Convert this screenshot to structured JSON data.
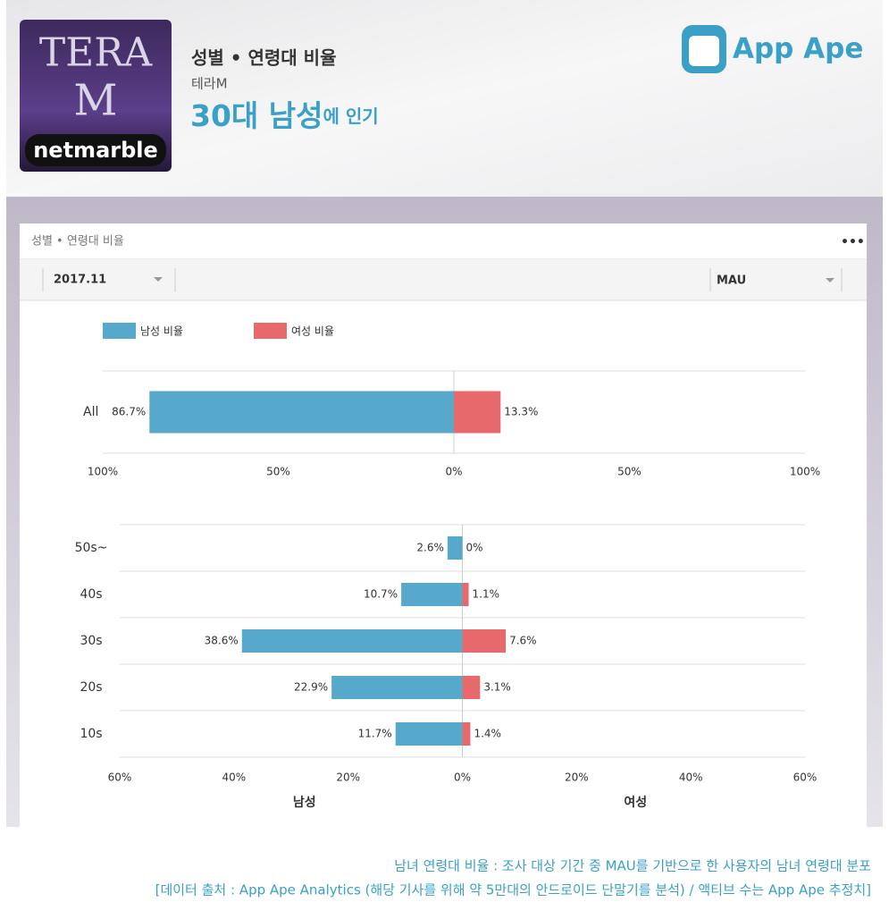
{
  "header": {
    "icon": {
      "line1": "TERA",
      "line2": "M",
      "brand": "netmarble"
    },
    "title": "성별 • 연령대 비율",
    "app_name": "테라M",
    "headline": "30대 남성",
    "headline_suffix": "에 인기",
    "logo": "App Ape"
  },
  "card": {
    "title": "성별 • 연령대 비율",
    "period": "2017.11",
    "metric": "MAU"
  },
  "chart_data": [
    {
      "type": "butterfly",
      "categories": [
        "All"
      ],
      "series": [
        {
          "name": "남성 비율",
          "color": "#57a9cb",
          "values": [
            86.7
          ],
          "value_labels": [
            "86.7%"
          ]
        },
        {
          "name": "여성 비율",
          "color": "#e8696b",
          "values": [
            13.3
          ],
          "value_labels": [
            "13.3%"
          ]
        }
      ],
      "xlim": [
        -100,
        100
      ],
      "xticks": [
        {
          "value": -100,
          "label": "100%"
        },
        {
          "value": -50,
          "label": "50%"
        },
        {
          "value": 0,
          "label": "0%"
        },
        {
          "value": 50,
          "label": "50%"
        },
        {
          "value": 100,
          "label": "100%"
        }
      ]
    },
    {
      "type": "butterfly",
      "categories": [
        "50s~",
        "40s",
        "30s",
        "20s",
        "10s"
      ],
      "series": [
        {
          "color": "#57a9cb",
          "values": [
            2.6,
            10.7,
            38.6,
            22.9,
            11.7
          ],
          "value_labels": [
            "2.6%",
            "10.7%",
            "38.6%",
            "22.9%",
            "11.7%"
          ]
        },
        {
          "color": "#e8696b",
          "values": [
            0,
            1.1,
            7.6,
            3.1,
            1.4
          ],
          "value_labels": [
            "0%",
            "1.1%",
            "7.6%",
            "3.1%",
            "1.4%"
          ]
        }
      ],
      "xlim": [
        -60,
        60
      ],
      "xticks": [
        {
          "value": -60,
          "label": "60%"
        },
        {
          "value": -40,
          "label": "40%"
        },
        {
          "value": -20,
          "label": "20%"
        },
        {
          "value": 0,
          "label": "0%"
        },
        {
          "value": 20,
          "label": "20%"
        },
        {
          "value": 40,
          "label": "40%"
        },
        {
          "value": 60,
          "label": "60%"
        }
      ],
      "xlabel_left": "남성",
      "xlabel_right": "여성"
    }
  ],
  "footer": {
    "line1": "남녀 연령대 비율 : 조사 대상 기간 중 MAU를 기반으로 한 사용자의 남녀 연령대 분포",
    "line2": "[데이터 출처 : App Ape Analytics (해당 기사를 위해 약 5만대의 안드로이드 단말기를 분석) / 액티브 수는 App Ape 추정치]"
  }
}
